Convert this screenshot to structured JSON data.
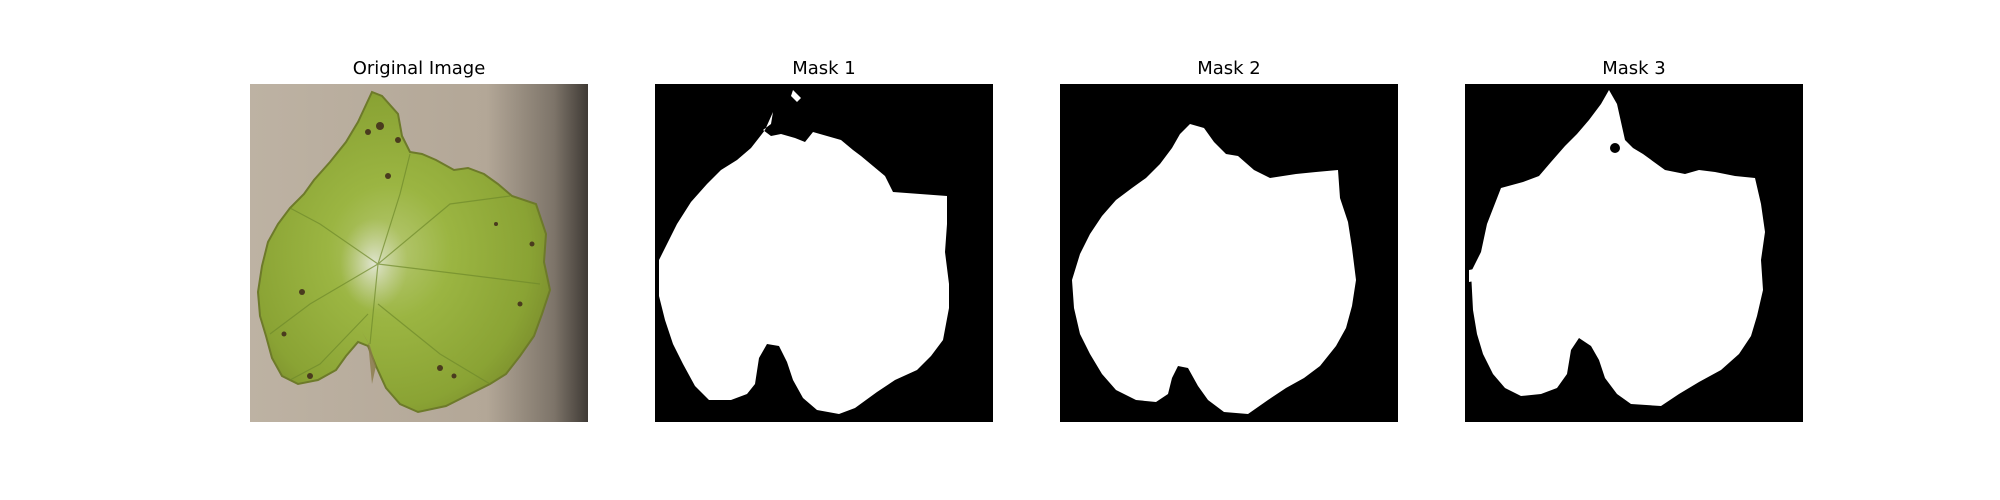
{
  "figure": {
    "panels": [
      {
        "title": "Original Image"
      },
      {
        "title": "Mask 1"
      },
      {
        "title": "Mask 2"
      },
      {
        "title": "Mask 3"
      }
    ]
  },
  "colors": {
    "mask_background": "#000000",
    "mask_foreground": "#ffffff",
    "leaf_green": "#94ad3a",
    "background_paper": "#b7ab9c"
  }
}
